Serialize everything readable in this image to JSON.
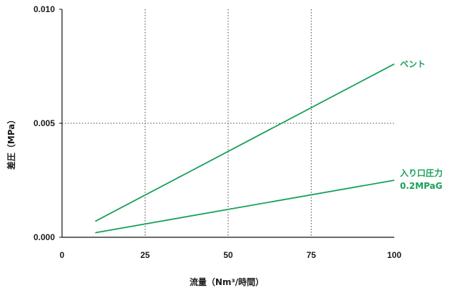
{
  "chart_data": {
    "type": "line",
    "xlabel": "流量（Nm³/時間）",
    "ylabel": "差圧（MPa）",
    "xlim": [
      0,
      100
    ],
    "ylim": [
      0,
      0.01
    ],
    "x_ticks": [
      "0",
      "25",
      "50",
      "75",
      "100"
    ],
    "y_ticks": [
      "0.000",
      "0.005",
      "0.010"
    ],
    "grid": "dotted",
    "series": [
      {
        "name": "ベント",
        "color": "#18a05a",
        "x": [
          10,
          100
        ],
        "y": [
          0.0007,
          0.0076
        ]
      },
      {
        "name": "入り口圧力",
        "subtitle": "0.2MPaG",
        "color": "#18a05a",
        "x": [
          10,
          100
        ],
        "y": [
          0.0002,
          0.0025
        ]
      }
    ]
  }
}
